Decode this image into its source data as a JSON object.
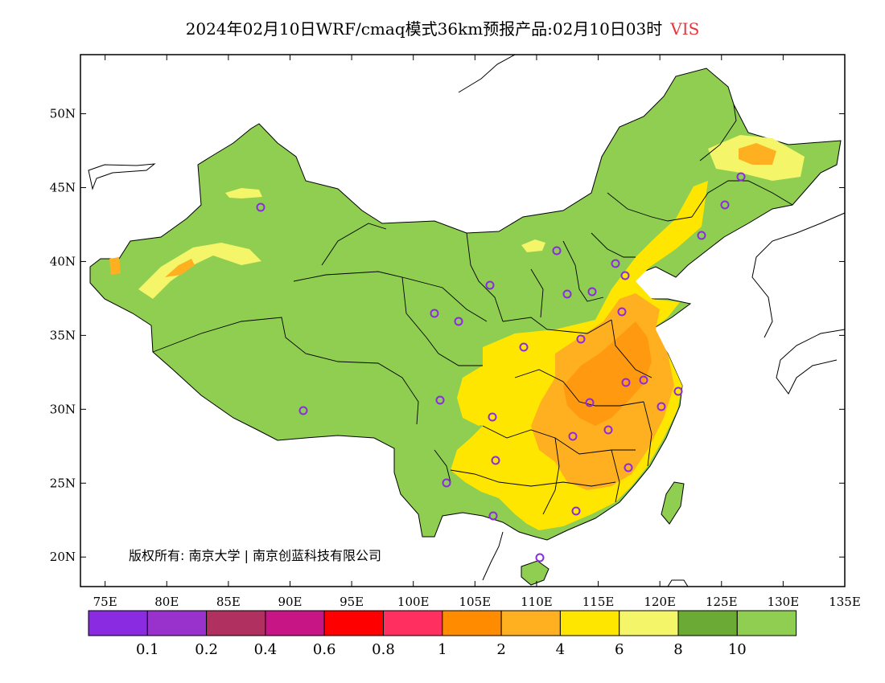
{
  "title": {
    "prefix": "2024年02月10日WRF/cmaq模式36km预报产品:02月10日03时",
    "variable": "VIS",
    "variable_color": "#e8343a"
  },
  "map": {
    "lon_range": [
      73,
      135
    ],
    "lat_range": [
      18,
      54
    ],
    "lon_ticks": [
      "75E",
      "80E",
      "85E",
      "90E",
      "95E",
      "100E",
      "105E",
      "110E",
      "115E",
      "120E",
      "125E",
      "130E",
      "135E"
    ],
    "lat_ticks": [
      "20N",
      "25N",
      "30N",
      "35N",
      "40N",
      "45N",
      "50N"
    ],
    "copyright": "版权所有: 南京大学 | 南京创蓝科技有限公司",
    "base_color": "#8fce50",
    "station_color": "#8a2be2"
  },
  "colorbar": {
    "colors": [
      "#8a2be2",
      "#9932cc",
      "#b03060",
      "#c71585",
      "#ff0000",
      "#ff3060",
      "#ff8c00",
      "#ffb020",
      "#ffe600",
      "#f5f56a",
      "#6aaa35",
      "#8fce50"
    ],
    "labels": [
      "0.1",
      "0.2",
      "0.4",
      "0.6",
      "0.8",
      "1",
      "2",
      "4",
      "6",
      "8",
      "10"
    ]
  }
}
